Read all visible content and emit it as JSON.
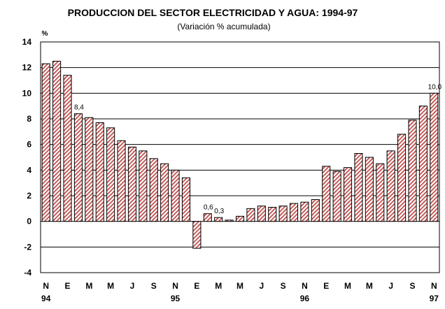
{
  "chart_data": {
    "type": "bar",
    "title": "PRODUCCION DEL SECTOR ELECTRICIDAD Y AGUA: 1994-97",
    "subtitle": "(Variación % acumulada)",
    "ylabel": "%",
    "ylim": [
      -4,
      14
    ],
    "yticks": [
      "-4",
      "-2",
      "0",
      "2",
      "4",
      "6",
      "8",
      "10",
      "12",
      "14"
    ],
    "grid": true,
    "legend": "none",
    "bar_color": "#c0504d",
    "hatch_color": "#e8b0b0",
    "values": [
      12.3,
      12.5,
      11.4,
      8.4,
      8.1,
      7.7,
      7.3,
      6.3,
      5.8,
      5.5,
      4.9,
      4.5,
      4.0,
      3.4,
      -2.1,
      0.6,
      0.3,
      0.1,
      0.4,
      1.0,
      1.2,
      1.1,
      1.2,
      1.4,
      1.5,
      1.7,
      4.3,
      3.9,
      4.2,
      5.3,
      5.0,
      4.5,
      5.5,
      6.8,
      7.9,
      9.0,
      10.0
    ],
    "month_labels": [
      "N",
      "E",
      "M",
      "M",
      "J",
      "S",
      "N",
      "E",
      "M",
      "M",
      "J",
      "S",
      "N",
      "E",
      "M",
      "M",
      "J",
      "S",
      "N"
    ],
    "year_labels": [
      "94",
      "95",
      "96",
      "97"
    ],
    "data_labels": [
      {
        "index": 3,
        "text": "8,4"
      },
      {
        "index": 15,
        "text": "0,6"
      },
      {
        "index": 16,
        "text": "0,3"
      },
      {
        "index": 36,
        "text": "10,0"
      }
    ]
  }
}
